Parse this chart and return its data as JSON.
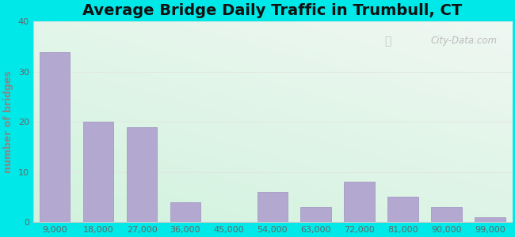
{
  "title": "Average Bridge Daily Traffic in Trumbull, CT",
  "ylabel": "number of bridges",
  "categories": [
    "9,000",
    "18,000",
    "27,000",
    "36,000",
    "45,000",
    "54,000",
    "63,000",
    "72,000",
    "81,000",
    "90,000",
    "99,000"
  ],
  "values": [
    34,
    20,
    19,
    4,
    0,
    6,
    3,
    8,
    5,
    3,
    1
  ],
  "bar_color": "#b3a8d0",
  "bar_edge_color": "#a090c0",
  "ylim": [
    0,
    40
  ],
  "yticks": [
    0,
    10,
    20,
    30,
    40
  ],
  "outer_bg": "#00e8e8",
  "plot_bg_topleft": "#d8ede0",
  "plot_bg_topright": "#e8f4f0",
  "plot_bg_bottomleft": "#d0eedc",
  "plot_bg_bottomright": "#f0fff8",
  "grid_color": "#e0e8e0",
  "title_fontsize": 14,
  "axis_label_fontsize": 9,
  "tick_fontsize": 8,
  "ylabel_color": "#888888",
  "tick_color": "#666666",
  "watermark": "City-Data.com"
}
